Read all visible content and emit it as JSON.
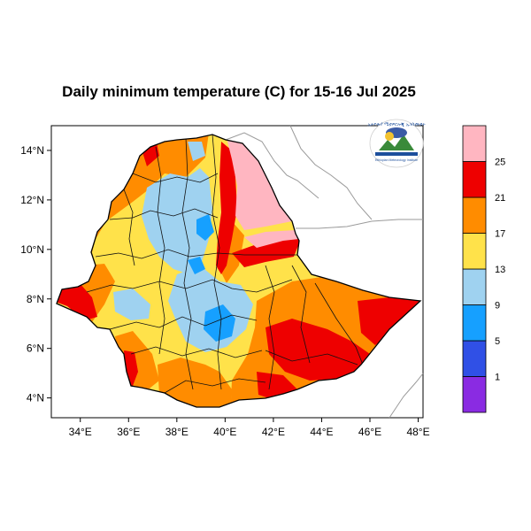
{
  "title": "Daily minimum temperature (C) for 15-16 Jul 2025",
  "map": {
    "lon_ticks": [
      "34°E",
      "36°E",
      "38°E",
      "40°E",
      "42°E",
      "44°E",
      "46°E",
      "48°E"
    ],
    "lat_ticks": [
      "14°N",
      "12°N",
      "10°N",
      "8°N",
      "6°N",
      "4°N"
    ],
    "lon_range": [
      32.8,
      48.2
    ],
    "lat_range": [
      3.2,
      15.0
    ]
  },
  "legend": {
    "bins": [
      {
        "color": "#8a2be2",
        "label": "1"
      },
      {
        "color": "#3050e6",
        "label": "5"
      },
      {
        "color": "#16a0ff",
        "label": "9"
      },
      {
        "color": "#9fd2f0",
        "label": "13"
      },
      {
        "color": "#ffe24a",
        "label": "17"
      },
      {
        "color": "#ff8c00",
        "label": "21"
      },
      {
        "color": "#ee0000",
        "label": "25"
      },
      {
        "color": "#ffb6c1",
        "label": ""
      }
    ]
  },
  "colors": {
    "above25": "#ffb6c1",
    "t21_25": "#ee0000",
    "t17_21": "#ff8c00",
    "t13_17": "#ffe24a",
    "t9_13": "#9fd2f0",
    "t5_9": "#16a0ff"
  },
  "logo": {
    "text": "ኢትዮጵያ ሜቲዎሮሎጂ ኢንስቲትዩት",
    "subtext": "Ethiopian Meteorology Institute"
  }
}
